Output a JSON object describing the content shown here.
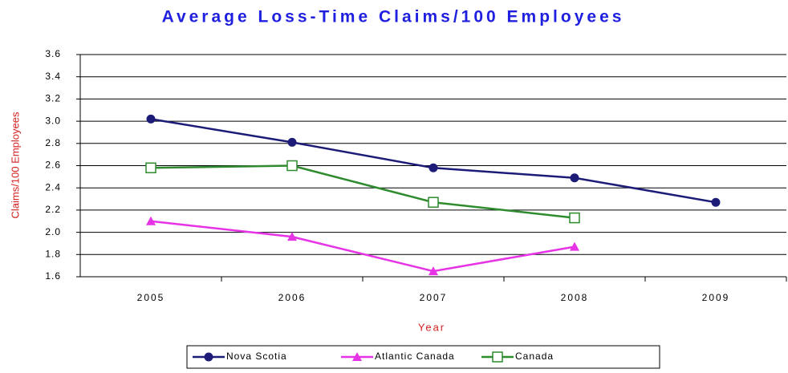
{
  "chart_data": {
    "type": "line",
    "title": "Average Loss-Time Claims/100 Employees",
    "x_label": "Year",
    "y_label": "Claims/100 Employees",
    "categories": [
      "2005",
      "2006",
      "2007",
      "2008",
      "2009"
    ],
    "series": [
      {
        "name": "Nova Scotia",
        "color": "#1c1c78",
        "marker": "circle",
        "values": [
          3.02,
          2.81,
          2.58,
          2.49,
          2.27
        ]
      },
      {
        "name": "Atlantic Canada",
        "color": "#e633e6",
        "marker": "triangle",
        "values": [
          2.1,
          1.96,
          1.65,
          1.87,
          null
        ]
      },
      {
        "name": "Canada",
        "color": "#2e8b2e",
        "marker": "square",
        "values": [
          2.58,
          2.6,
          2.27,
          2.13,
          null
        ]
      }
    ],
    "ylim": [
      1.6,
      3.6
    ],
    "yticks": [
      1.6,
      1.8,
      {
        "value": 2,
        "label": "2.0"
      },
      2.2,
      2.4,
      2.6,
      2.8,
      {
        "value": 3,
        "label": "3.0"
      },
      3.2,
      3.4,
      3.6
    ],
    "grid": true,
    "legend": "bottom"
  }
}
